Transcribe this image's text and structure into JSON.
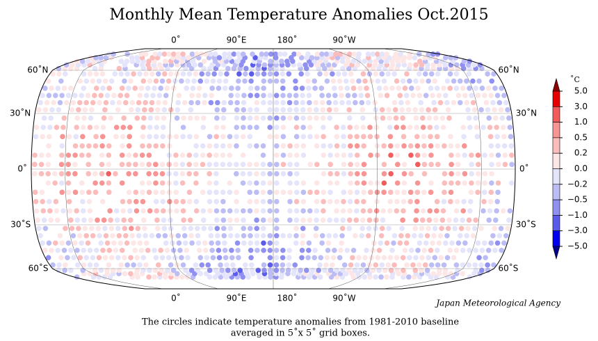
{
  "title": "Monthly Mean Temperature Anomalies Oct.2015",
  "map": {
    "lon_labels": [
      "0˚",
      "90˚E",
      "180˚",
      "90˚W"
    ],
    "lat_labels": [
      "60˚N",
      "30˚N",
      "0˚",
      "30˚S",
      "60˚S"
    ]
  },
  "colorbar": {
    "unit": "˚C",
    "ticks": [
      {
        "value": 5,
        "label": "5.0"
      },
      {
        "value": 3,
        "label": "3.0"
      },
      {
        "value": 1,
        "label": "1.0"
      },
      {
        "value": 0.5,
        "label": "0.5"
      },
      {
        "value": 0.2,
        "label": "0.2"
      },
      {
        "value": 0,
        "label": "0.0"
      },
      {
        "value": -0.2,
        "label": "−0.2"
      },
      {
        "value": -0.5,
        "label": "−0.5"
      },
      {
        "value": -1,
        "label": "−1.0"
      },
      {
        "value": -3,
        "label": "−3.0"
      },
      {
        "value": -5,
        "label": "−5.0"
      }
    ],
    "colors": [
      "#8b0000",
      "#e80000",
      "#f25c5c",
      "#f79494",
      "#fbbcbc",
      "#fde6e6",
      "#e4e4fb",
      "#bdbdf6",
      "#9090f0",
      "#5c5cea",
      "#0000ee",
      "#00008b"
    ]
  },
  "credit": "Japan Meteorological Agency",
  "caption": [
    "The circles indicate temperature anomalies from 1981-2010 baseline",
    "averaged in 5˚x 5˚ grid boxes."
  ]
}
